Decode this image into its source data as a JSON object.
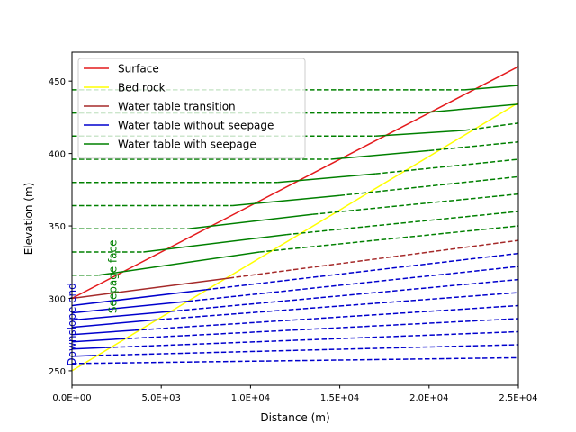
{
  "chart_data": {
    "type": "line",
    "title": "",
    "xlabel": "Distance (m)",
    "ylabel": "Elevation (m)",
    "xlim": [
      0,
      25000
    ],
    "ylim": [
      240,
      470
    ],
    "xticks": [
      0,
      5000,
      10000,
      15000,
      20000,
      25000
    ],
    "xtick_labels": [
      "0.0E+00",
      "5.0E+03",
      "1.0E+04",
      "1.5E+04",
      "2.0E+04",
      "2.5E+04"
    ],
    "yticks": [
      250,
      300,
      350,
      400,
      450
    ],
    "ytick_labels": [
      "250",
      "300",
      "350",
      "400",
      "450"
    ],
    "grid": false,
    "legend_position": "upper-left",
    "legend": [
      {
        "label": "Surface",
        "color": "#e41a1c"
      },
      {
        "label": "Bed rock",
        "color": "#ffff00"
      },
      {
        "label": "Water table transition",
        "color": "#a52a2a"
      },
      {
        "label": "Water table without seepage",
        "color": "#0000cd"
      },
      {
        "label": "Water table with seepage",
        "color": "#008000"
      }
    ],
    "annotations": [
      {
        "text": "Downslope end",
        "color": "#0000cd",
        "x": 0,
        "y": 282,
        "rotation": 90
      },
      {
        "text": "Seepage face",
        "color": "#008000",
        "x": 2000,
        "y": 315,
        "rotation": 90
      }
    ],
    "series": [
      {
        "name": "Surface",
        "color": "#e41a1c",
        "dash": "solid",
        "x": [
          0,
          25000
        ],
        "y": [
          300,
          460
        ]
      },
      {
        "name": "Bed rock",
        "color": "#ffff00",
        "dash": "solid",
        "x": [
          0,
          25000
        ],
        "y": [
          250,
          435
        ]
      },
      {
        "color": "#0000cd",
        "dash": "solid",
        "x": [
          0,
          7500
        ],
        "y": [
          295,
          306
        ]
      },
      {
        "color": "#0000cd",
        "dash": "dashed",
        "x": [
          7500,
          25000
        ],
        "y": [
          306,
          331
        ]
      },
      {
        "color": "#0000cd",
        "dash": "solid",
        "x": [
          0,
          6500
        ],
        "y": [
          290,
          298
        ]
      },
      {
        "color": "#0000cd",
        "dash": "dashed",
        "x": [
          6500,
          25000
        ],
        "y": [
          298,
          322
        ]
      },
      {
        "color": "#0000cd",
        "dash": "solid",
        "x": [
          0,
          5500
        ],
        "y": [
          285,
          291
        ]
      },
      {
        "color": "#0000cd",
        "dash": "dashed",
        "x": [
          5500,
          25000
        ],
        "y": [
          291,
          313
        ]
      },
      {
        "color": "#0000cd",
        "dash": "solid",
        "x": [
          0,
          4500
        ],
        "y": [
          280,
          285
        ]
      },
      {
        "color": "#0000cd",
        "dash": "dashed",
        "x": [
          4500,
          25000
        ],
        "y": [
          285,
          304
        ]
      },
      {
        "color": "#0000cd",
        "dash": "solid",
        "x": [
          0,
          3500
        ],
        "y": [
          275,
          278
        ]
      },
      {
        "color": "#0000cd",
        "dash": "dashed",
        "x": [
          3500,
          25000
        ],
        "y": [
          278,
          295
        ]
      },
      {
        "color": "#0000cd",
        "dash": "solid",
        "x": [
          0,
          2700
        ],
        "y": [
          270,
          272
        ]
      },
      {
        "color": "#0000cd",
        "dash": "dashed",
        "x": [
          2700,
          25000
        ],
        "y": [
          272,
          286
        ]
      },
      {
        "color": "#0000cd",
        "dash": "solid",
        "x": [
          0,
          1900
        ],
        "y": [
          265,
          266
        ]
      },
      {
        "color": "#0000cd",
        "dash": "dashed",
        "x": [
          1900,
          25000
        ],
        "y": [
          266,
          277
        ]
      },
      {
        "color": "#0000cd",
        "dash": "solid",
        "x": [
          0,
          1100
        ],
        "y": [
          260,
          260.5
        ]
      },
      {
        "color": "#0000cd",
        "dash": "dashed",
        "x": [
          1100,
          25000
        ],
        "y": [
          260.5,
          268
        ]
      },
      {
        "color": "#0000cd",
        "dash": "dashed",
        "x": [
          0,
          25000
        ],
        "y": [
          255,
          259
        ]
      },
      {
        "color": "#a52a2a",
        "dash": "solid",
        "x": [
          0,
          8800
        ],
        "y": [
          300,
          314
        ]
      },
      {
        "color": "#a52a2a",
        "dash": "dashed",
        "x": [
          8800,
          25000
        ],
        "y": [
          314,
          340
        ]
      },
      {
        "color": "#008000",
        "dash": "dashed",
        "x": [
          0,
          1500
        ],
        "y": [
          316,
          316
        ]
      },
      {
        "color": "#008000",
        "dash": "solid",
        "x": [
          1500,
          10500
        ],
        "y": [
          316,
          332
        ]
      },
      {
        "color": "#008000",
        "dash": "dashed",
        "x": [
          10500,
          25000
        ],
        "y": [
          332,
          350
        ]
      },
      {
        "color": "#008000",
        "dash": "dashed",
        "x": [
          0,
          4000
        ],
        "y": [
          332,
          332
        ]
      },
      {
        "color": "#008000",
        "dash": "solid",
        "x": [
          4000,
          12000
        ],
        "y": [
          332,
          344
        ]
      },
      {
        "color": "#008000",
        "dash": "dashed",
        "x": [
          12000,
          25000
        ],
        "y": [
          344,
          360
        ]
      },
      {
        "color": "#008000",
        "dash": "dashed",
        "x": [
          0,
          6500
        ],
        "y": [
          348,
          348
        ]
      },
      {
        "color": "#008000",
        "dash": "solid",
        "x": [
          6500,
          13500
        ],
        "y": [
          348,
          358
        ]
      },
      {
        "color": "#008000",
        "dash": "dashed",
        "x": [
          13500,
          25000
        ],
        "y": [
          358,
          372
        ]
      },
      {
        "color": "#008000",
        "dash": "dashed",
        "x": [
          0,
          9000
        ],
        "y": [
          364,
          364
        ]
      },
      {
        "color": "#008000",
        "dash": "solid",
        "x": [
          9000,
          15000
        ],
        "y": [
          364,
          371
        ]
      },
      {
        "color": "#008000",
        "dash": "dashed",
        "x": [
          15000,
          25000
        ],
        "y": [
          371,
          384
        ]
      },
      {
        "color": "#008000",
        "dash": "dashed",
        "x": [
          0,
          11500
        ],
        "y": [
          380,
          380
        ]
      },
      {
        "color": "#008000",
        "dash": "solid",
        "x": [
          11500,
          17000
        ],
        "y": [
          380,
          386
        ]
      },
      {
        "color": "#008000",
        "dash": "dashed",
        "x": [
          17000,
          25000
        ],
        "y": [
          386,
          396
        ]
      },
      {
        "color": "#008000",
        "dash": "dashed",
        "x": [
          0,
          14500
        ],
        "y": [
          396,
          396
        ]
      },
      {
        "color": "#008000",
        "dash": "solid",
        "x": [
          14500,
          20000
        ],
        "y": [
          396,
          402
        ]
      },
      {
        "color": "#008000",
        "dash": "dashed",
        "x": [
          20000,
          25000
        ],
        "y": [
          402,
          408
        ]
      },
      {
        "color": "#008000",
        "dash": "dashed",
        "x": [
          0,
          17000
        ],
        "y": [
          412,
          412
        ]
      },
      {
        "color": "#008000",
        "dash": "solid",
        "x": [
          17000,
          22000
        ],
        "y": [
          412,
          416
        ]
      },
      {
        "color": "#008000",
        "dash": "dashed",
        "x": [
          22000,
          25000
        ],
        "y": [
          416,
          421
        ]
      },
      {
        "color": "#008000",
        "dash": "dashed",
        "x": [
          0,
          19500
        ],
        "y": [
          428,
          428
        ]
      },
      {
        "color": "#008000",
        "dash": "solid",
        "x": [
          19500,
          25000
        ],
        "y": [
          428,
          434
        ]
      },
      {
        "color": "#008000",
        "dash": "dashed",
        "x": [
          0,
          22000
        ],
        "y": [
          444,
          444
        ]
      },
      {
        "color": "#008000",
        "dash": "solid",
        "x": [
          22000,
          25000
        ],
        "y": [
          444,
          447
        ]
      }
    ]
  }
}
